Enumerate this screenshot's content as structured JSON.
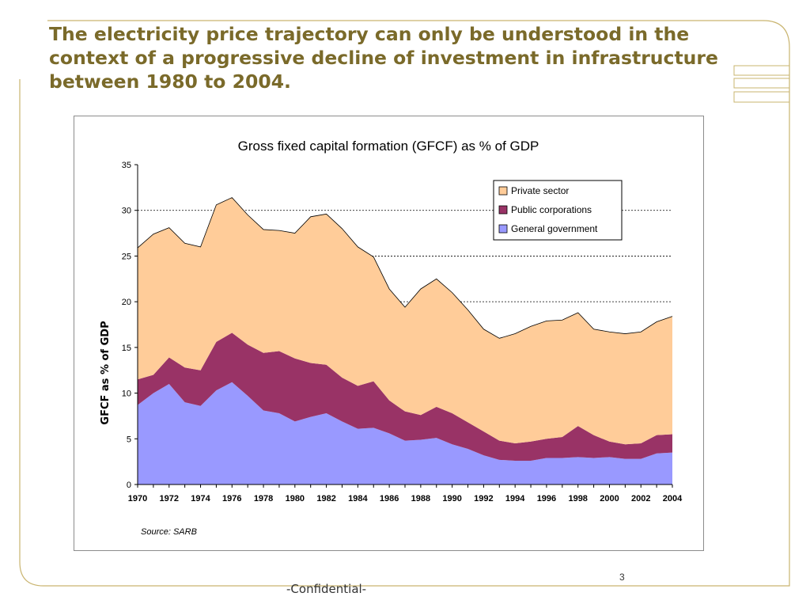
{
  "slide": {
    "title": "The electricity price trajectory can only be understood in the context of a progressive decline of investment in infrastructure between 1980 to 2004.",
    "page_number": "3",
    "footer": "-Confidential-",
    "accent_color": "#c9b46f",
    "title_color": "#7a6a2a"
  },
  "chart_data": {
    "type": "area",
    "stacked": true,
    "title": "Gross fixed capital formation (GFCF) as % of GDP",
    "xlabel": "",
    "ylabel": "GFCF as % of GDP",
    "source": "Source: SARB",
    "x": [
      1970,
      1971,
      1972,
      1973,
      1974,
      1975,
      1976,
      1977,
      1978,
      1979,
      1980,
      1981,
      1982,
      1983,
      1984,
      1985,
      1986,
      1987,
      1988,
      1989,
      1990,
      1991,
      1992,
      1993,
      1994,
      1995,
      1996,
      1997,
      1998,
      1999,
      2000,
      2001,
      2002,
      2003,
      2004
    ],
    "x_tick_labels": [
      "1970",
      "1972",
      "1974",
      "1976",
      "1978",
      "1980",
      "1982",
      "1984",
      "1986",
      "1988",
      "1990",
      "1992",
      "1994",
      "1996",
      "1998",
      "2000",
      "2002",
      "2004"
    ],
    "ylim": [
      0,
      35
    ],
    "y_ticks": [
      0,
      5,
      10,
      15,
      20,
      25,
      30,
      35
    ],
    "y_tick_labels": [
      "0",
      "5",
      "10",
      "15",
      "20",
      "25",
      "30",
      "35"
    ],
    "grid_lines_at": [
      20,
      25,
      30
    ],
    "legend_position": "top-right",
    "series": [
      {
        "name": "General government",
        "color": "#9999ff",
        "values": [
          8.7,
          10.0,
          11.0,
          9.0,
          8.6,
          10.3,
          11.2,
          9.7,
          8.1,
          7.8,
          6.9,
          7.4,
          7.8,
          6.9,
          6.1,
          6.2,
          5.6,
          4.8,
          4.9,
          5.1,
          4.4,
          3.9,
          3.2,
          2.7,
          2.6,
          2.6,
          2.9,
          2.9,
          3.0,
          2.9,
          3.0,
          2.8,
          2.8,
          3.4,
          3.5
        ]
      },
      {
        "name": "Public corporations",
        "color": "#993366",
        "values": [
          2.8,
          2.0,
          2.9,
          3.8,
          3.9,
          5.3,
          5.4,
          5.6,
          6.3,
          6.8,
          6.9,
          5.9,
          5.3,
          4.8,
          4.7,
          5.1,
          3.6,
          3.2,
          2.7,
          3.4,
          3.4,
          2.9,
          2.6,
          2.1,
          1.9,
          2.1,
          2.1,
          2.3,
          3.4,
          2.5,
          1.7,
          1.6,
          1.7,
          2.0,
          2.0
        ]
      },
      {
        "name": "Private sector",
        "color": "#ffcc99",
        "values": [
          14.4,
          15.4,
          14.2,
          13.6,
          13.5,
          15.0,
          14.8,
          14.2,
          13.5,
          13.2,
          13.7,
          16.0,
          16.5,
          16.3,
          15.2,
          13.6,
          12.2,
          11.4,
          13.8,
          14.0,
          13.2,
          12.3,
          11.2,
          11.2,
          12.0,
          12.6,
          12.9,
          12.8,
          12.4,
          11.6,
          12.0,
          12.1,
          12.2,
          12.4,
          12.9
        ]
      }
    ]
  }
}
